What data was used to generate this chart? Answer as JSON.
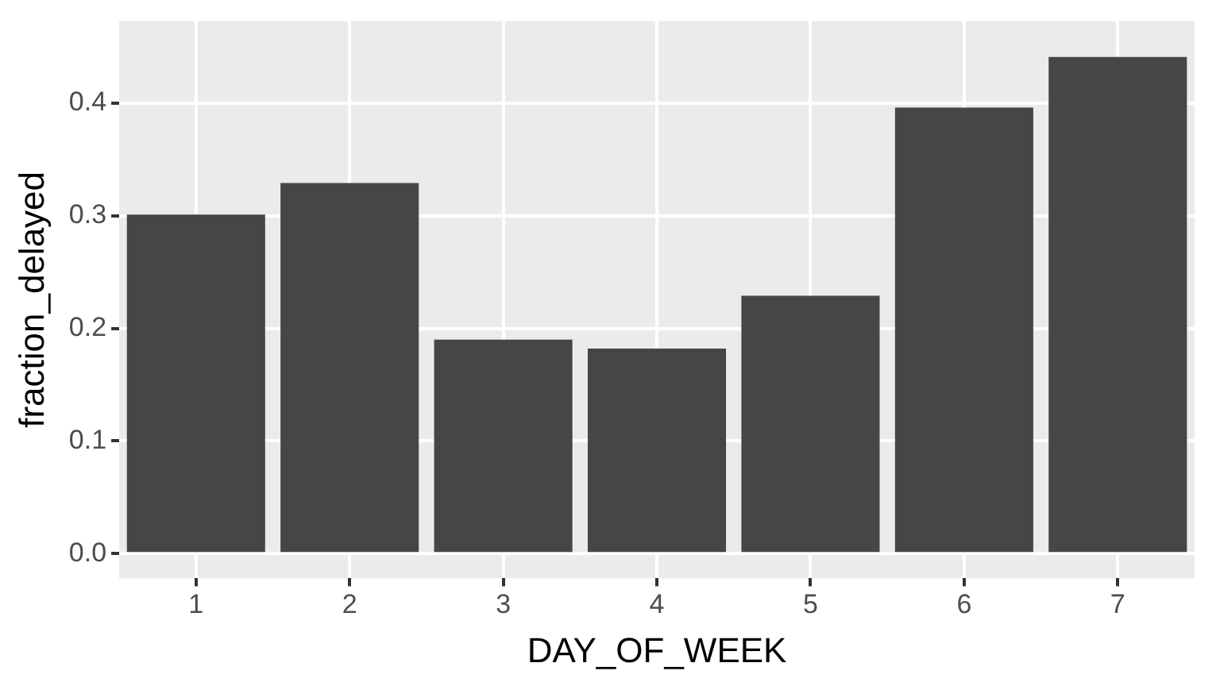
{
  "chart_data": {
    "type": "bar",
    "xlabel": "DAY_OF_WEEK",
    "ylabel": "fraction_delayed",
    "categories": [
      "1",
      "2",
      "3",
      "4",
      "5",
      "6",
      "7"
    ],
    "values": [
      0.301,
      0.329,
      0.19,
      0.182,
      0.229,
      0.396,
      0.441
    ],
    "color": "#464646",
    "ylim": [
      -0.022,
      0.473
    ],
    "yticks": [
      {
        "value": 0,
        "label": "0.0"
      },
      0.1,
      0.2,
      0.3,
      0.4
    ],
    "grid": true,
    "legend": false
  }
}
